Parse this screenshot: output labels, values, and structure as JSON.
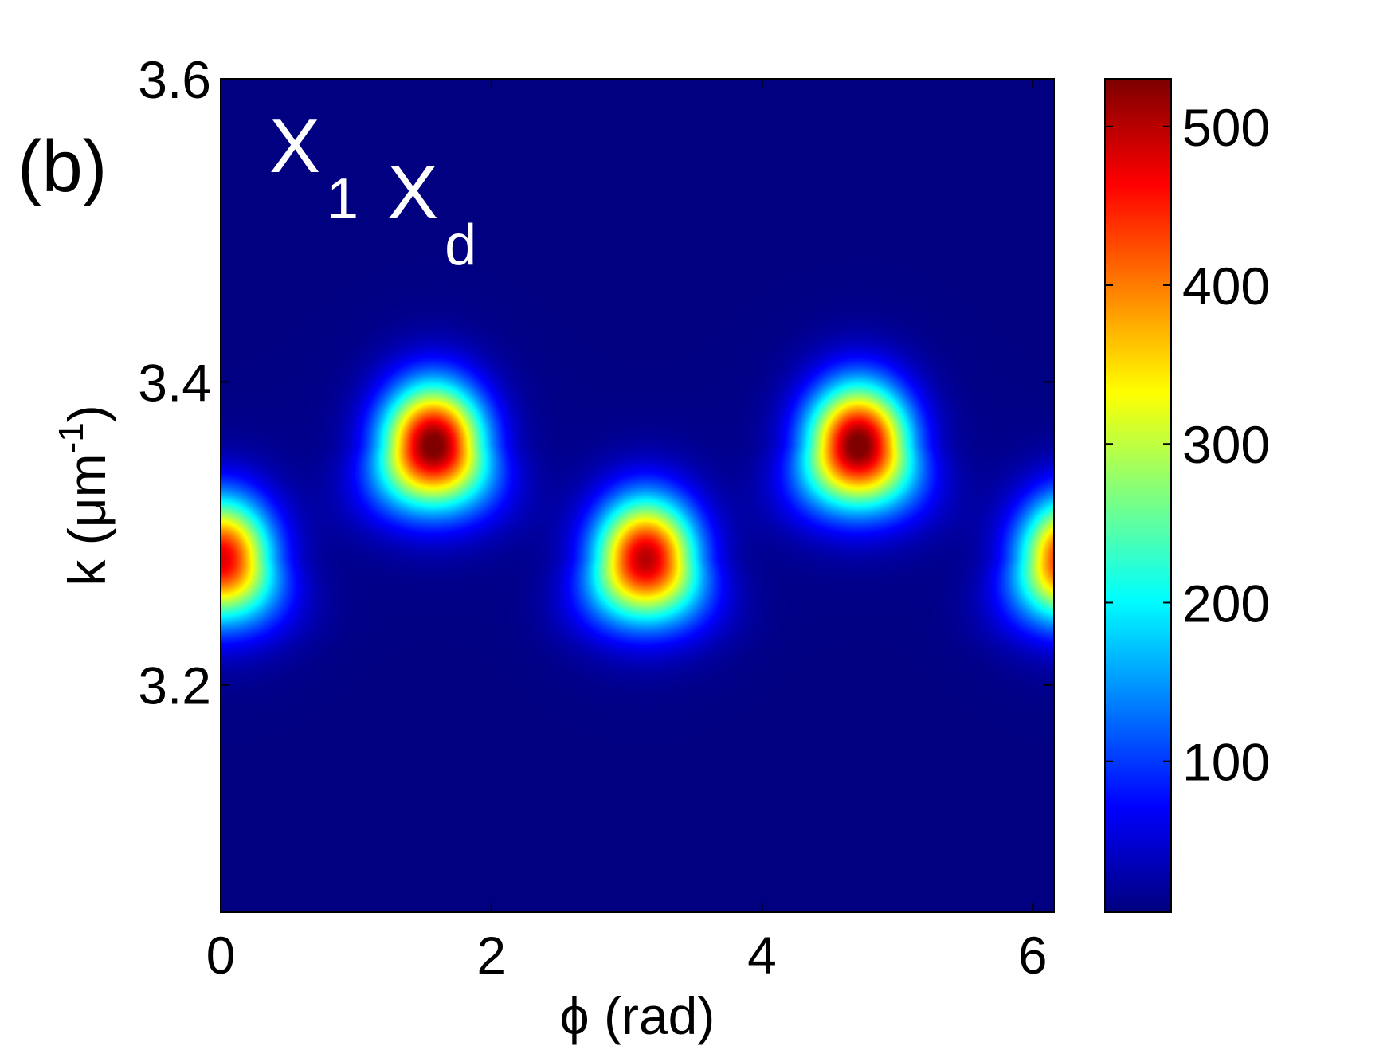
{
  "chart_data": {
    "type": "heatmap",
    "panel_label": "(b)",
    "annotation": {
      "parts": [
        {
          "main": "X",
          "sub": "1"
        },
        {
          "main": "X",
          "sub": "d"
        }
      ]
    },
    "xlabel": "ϕ (rad)",
    "ylabel": {
      "text": "k (μm",
      "superscript": "-1",
      "close": ")"
    },
    "xlim": [
      0,
      6.1575
    ],
    "ylim": [
      3.05,
      3.6
    ],
    "x_ticks": [
      0,
      2,
      4,
      6
    ],
    "x_tick_labels": [
      "0",
      "2",
      "4",
      "6"
    ],
    "y_ticks": [
      3.2,
      3.4,
      3.6
    ],
    "y_tick_labels": [
      "3.2",
      "3.4",
      "3.6"
    ],
    "colorbar": {
      "colormap": "jet",
      "range": [
        5,
        530
      ],
      "ticks": [
        100,
        200,
        300,
        400,
        500
      ],
      "tick_labels": [
        "100",
        "200",
        "300",
        "400",
        "500"
      ]
    },
    "background_color": "#00008f",
    "peaks": [
      {
        "phi": 0.0,
        "k": 3.283,
        "value": 470
      },
      {
        "phi": 1.5708,
        "k": 3.358,
        "value": 530
      },
      {
        "phi": 3.1416,
        "k": 3.283,
        "value": 490
      },
      {
        "phi": 4.7124,
        "k": 3.358,
        "value": 530
      },
      {
        "phi": 6.2832,
        "k": 3.283,
        "value": 470
      }
    ],
    "grid": false,
    "legend": "none"
  }
}
